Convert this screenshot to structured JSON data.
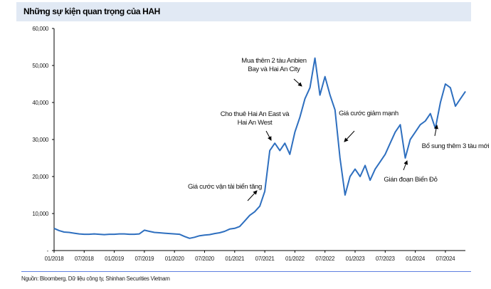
{
  "chart_data": {
    "type": "line",
    "title": "Những sự kiện quan trọng của HAH",
    "source": "Nguồn: Bloomberg, Dữ liệu công ty, Shinhan Securities Vietnam",
    "ylim": [
      0,
      60000
    ],
    "y_ticks": [
      "-",
      "10,000",
      "20,000",
      "30,000",
      "40,000",
      "50,000",
      "60,000"
    ],
    "x_ticks": [
      "01/2018",
      "07/2018",
      "01/2019",
      "07/2019",
      "01/2020",
      "07/2020",
      "01/2021",
      "07/2021",
      "01/2022",
      "07/2022",
      "01/2023",
      "07/2023",
      "01/2024",
      "07/2024"
    ],
    "grid": false,
    "line_color": "#2e6fbf",
    "start_month": "01/2018",
    "values": [
      6000,
      5400,
      5000,
      4900,
      4700,
      4500,
      4400,
      4400,
      4500,
      4400,
      4300,
      4400,
      4400,
      4500,
      4500,
      4400,
      4400,
      4500,
      5500,
      5200,
      4900,
      4800,
      4700,
      4600,
      4500,
      4400,
      3800,
      3300,
      3600,
      4000,
      4200,
      4300,
      4600,
      4800,
      5200,
      5800,
      6000,
      6500,
      8000,
      9500,
      10500,
      12000,
      16000,
      27000,
      29000,
      27000,
      29000,
      26000,
      32000,
      36000,
      41000,
      44000,
      52000,
      42000,
      47000,
      42000,
      38000,
      25000,
      15000,
      20000,
      22000,
      20000,
      23000,
      19000,
      22000,
      24000,
      26000,
      29000,
      32000,
      34000,
      25000,
      30000,
      32000,
      34000,
      35000,
      37000,
      33000,
      40000,
      45000,
      44000,
      39000,
      41000,
      43000
    ],
    "annotations": [
      {
        "lines": [
          "Giá cước vận tải biển tăng"
        ]
      },
      {
        "lines": [
          "Cho thuê Hai An East và",
          "Hai An West"
        ]
      },
      {
        "lines": [
          "Mua thêm 2 tàu Anbien",
          "Bay và Hai An City"
        ]
      },
      {
        "lines": [
          "Giá cước giảm mạnh"
        ]
      },
      {
        "lines": [
          "Gián đoạn Biển Đỏ"
        ]
      },
      {
        "lines": [
          "Bổ sung thêm 3 tàu mới"
        ]
      }
    ]
  }
}
